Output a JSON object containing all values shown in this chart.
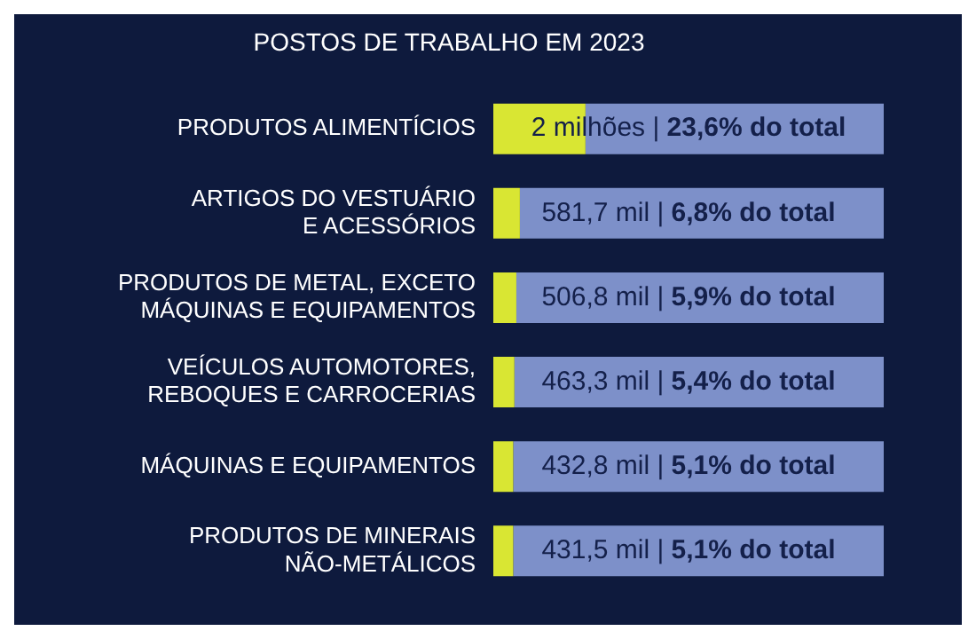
{
  "chart_data": {
    "type": "bar",
    "orientation": "horizontal",
    "stacked": true,
    "title": "POSTOS DE TRABALHO EM 2023",
    "categories": [
      "PRODUTOS ALIMENTÍCIOS",
      "ARTIGOS DO VESTUÁRIO\nE ACESSÓRIOS",
      "PRODUTOS DE METAL, EXCETO\nMÁQUINAS E EQUIPAMENTOS",
      "VEÍCULOS AUTOMOTORES,\nREBOQUES E CARROCERIAS",
      "MÁQUINAS E EQUIPAMENTOS",
      "PRODUTOS DE MINERAIS\nNÃO-METÁLICOS"
    ],
    "series": [
      {
        "color": "#d9e633",
        "values": [
          23.6,
          6.8,
          5.9,
          5.4,
          5.1,
          5.1
        ],
        "value_labels": [
          "2 milhões | 23,6% do total",
          "581,7 mil | 6,8% do total",
          "506,8 mil | 5,9% do total",
          "463,3 mil | 5,4% do total",
          "432,8 mil | 5,1% do total",
          "431,5 mil | 5,1% do total"
        ]
      },
      {
        "color": "#7d90c9",
        "values": [
          76.4,
          93.2,
          94.1,
          94.6,
          94.9,
          94.9
        ]
      }
    ],
    "xlim": [
      0,
      100
    ],
    "grid": false,
    "legend": false
  }
}
